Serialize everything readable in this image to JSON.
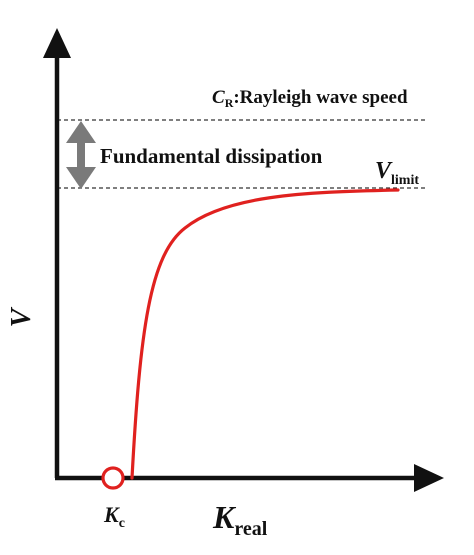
{
  "axes": {
    "y_symbol": "V",
    "x_symbol": "K",
    "x_subscript": "real"
  },
  "rayleigh": {
    "symbol": "C",
    "subscript": "R",
    "text": ":Rayleigh wave speed"
  },
  "dissipation": {
    "label": "Fundamental dissipation"
  },
  "limit": {
    "symbol": "V",
    "subscript": "limit"
  },
  "critical": {
    "symbol": "K",
    "subscript": "c"
  },
  "colors": {
    "axis": "#111111",
    "curve": "#e0211f",
    "arrow": "#7a7a7a",
    "dashed": "#333333",
    "marker": "#e0211f"
  },
  "icons": {
    "double_arrow": "vertical-double-arrow-icon",
    "critical_marker": "open-circle-icon"
  }
}
